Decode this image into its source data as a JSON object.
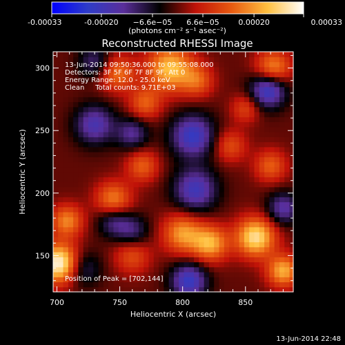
{
  "chart_data": {
    "type": "heatmap",
    "title": "Reconstructed RHESSI Image",
    "xlabel": "Heliocentric X (arcsec)",
    "ylabel": "Heliocentric Y (arcsec)",
    "xlim": [
      697,
      888
    ],
    "ylim": [
      121,
      313
    ],
    "x_ticks": [
      700,
      750,
      800,
      850
    ],
    "y_ticks": [
      150,
      200,
      250,
      300
    ],
    "x_tick_labels": [
      "700",
      "750",
      "800",
      "850"
    ],
    "y_tick_labels": [
      "150",
      "200",
      "250",
      "300"
    ],
    "colorbar": {
      "range": [
        -0.00033,
        0.00033
      ],
      "tick_values": [
        -0.00033,
        -0.0002,
        -6.6e-05,
        6.6e-05,
        0.0002,
        0.00033
      ],
      "tick_labels": [
        "-0.00033",
        "-0.00020",
        "−6.6e−05",
        "6.6e−05",
        "0.00020",
        "0.00033"
      ],
      "unit_label": "(photons cm⁻² s⁻¹ asec⁻²)",
      "colors": [
        "#0000ff",
        "#2e3cc8",
        "#5a2e9a",
        "#000000",
        "#c01208",
        "#e85a10",
        "#ffc040",
        "#ffffff"
      ]
    },
    "annotations": [
      "13-Jun-2014 09:50:36.000 to 09:55:08.000",
      "Detectors: 3F 5F 6F 7F 8F 9F, Att 0",
      "Energy Range: 12.0 - 25.0 keV",
      "Clean     Total counts: 9.71E+03"
    ],
    "peak_label": "Position of Peak = [702,144]",
    "peak_position": [
      702,
      144
    ],
    "sources": [
      {
        "x": 702,
        "y": 144,
        "a": 0.00033,
        "s": 11
      },
      {
        "x": 708,
        "y": 178,
        "a": 0.00018,
        "s": 9
      },
      {
        "x": 790,
        "y": 300,
        "a": 0.00024,
        "s": 13
      },
      {
        "x": 748,
        "y": 296,
        "a": 0.00016,
        "s": 10
      },
      {
        "x": 770,
        "y": 272,
        "a": 0.00014,
        "s": 9
      },
      {
        "x": 812,
        "y": 290,
        "a": 0.00013,
        "s": 9
      },
      {
        "x": 872,
        "y": 300,
        "a": 0.0002,
        "s": 10
      },
      {
        "x": 745,
        "y": 195,
        "a": 0.00018,
        "s": 10
      },
      {
        "x": 768,
        "y": 222,
        "a": 0.00014,
        "s": 9
      },
      {
        "x": 800,
        "y": 168,
        "a": 0.0002,
        "s": 11
      },
      {
        "x": 822,
        "y": 160,
        "a": 0.00022,
        "s": 10
      },
      {
        "x": 858,
        "y": 165,
        "a": 0.00028,
        "s": 11
      },
      {
        "x": 880,
        "y": 138,
        "a": 0.00022,
        "s": 9
      },
      {
        "x": 838,
        "y": 238,
        "a": 0.00012,
        "s": 9
      },
      {
        "x": 870,
        "y": 222,
        "a": 0.00014,
        "s": 9
      },
      {
        "x": 760,
        "y": 150,
        "a": 0.00012,
        "s": 10
      },
      {
        "x": 850,
        "y": 268,
        "a": 0.00011,
        "s": 8
      },
      {
        "x": 730,
        "y": 255,
        "a": -0.00018,
        "s": 11
      },
      {
        "x": 760,
        "y": 248,
        "a": -0.00014,
        "s": 9
      },
      {
        "x": 808,
        "y": 246,
        "a": -0.00022,
        "s": 12
      },
      {
        "x": 868,
        "y": 283,
        "a": -0.00024,
        "s": 10
      },
      {
        "x": 745,
        "y": 178,
        "a": -0.00013,
        "s": 9
      },
      {
        "x": 760,
        "y": 170,
        "a": -0.00012,
        "s": 9
      },
      {
        "x": 810,
        "y": 203,
        "a": -0.0002,
        "s": 12
      },
      {
        "x": 720,
        "y": 140,
        "a": -0.00012,
        "s": 10
      },
      {
        "x": 805,
        "y": 130,
        "a": -0.00022,
        "s": 10
      },
      {
        "x": 880,
        "y": 188,
        "a": -0.00016,
        "s": 9
      },
      {
        "x": 730,
        "y": 305,
        "a": -0.00012,
        "s": 9
      }
    ],
    "grid": false
  },
  "footer": {
    "timestamp": "13-Jun-2014 22:48"
  }
}
